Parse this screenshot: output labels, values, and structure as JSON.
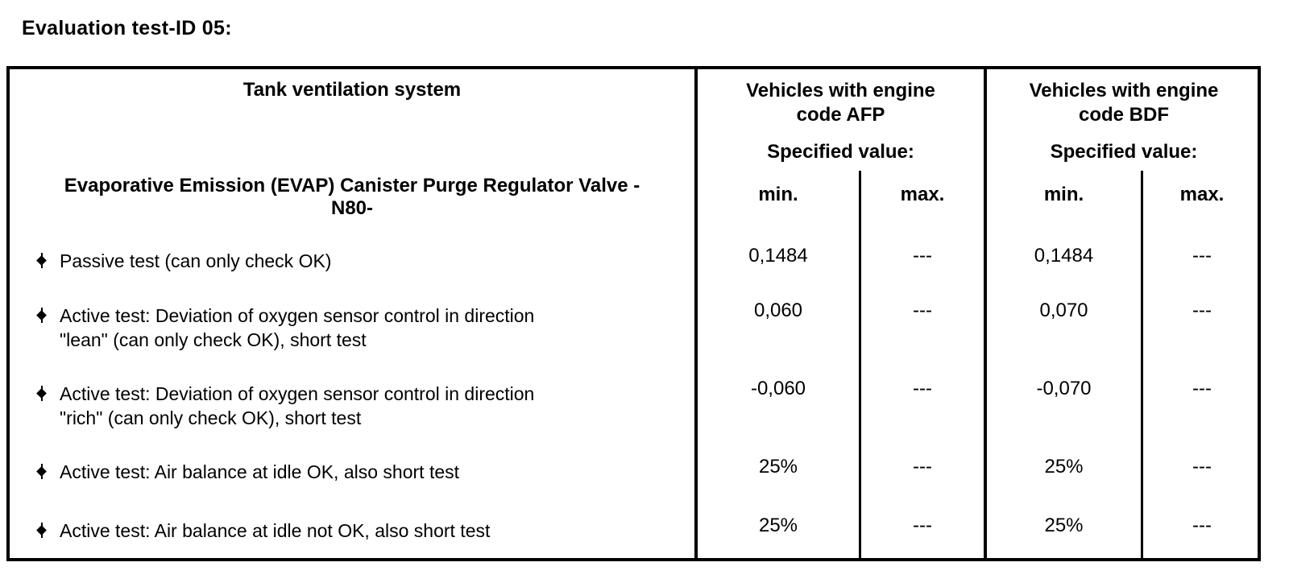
{
  "page_title": "Evaluation test-ID 05:",
  "table": {
    "left_header": "Tank ventilation system",
    "row_header": "Evaporative Emission (EVAP) Canister Purge Regulator Valve -\nN80-",
    "groups": [
      {
        "title": "Vehicles with engine\ncode AFP",
        "spec_label": "Specified value:",
        "min_label": "min.",
        "max_label": "max."
      },
      {
        "title": "Vehicles with engine\ncode BDF",
        "spec_label": "Specified value:",
        "min_label": "min.",
        "max_label": "max."
      }
    ],
    "rows": [
      {
        "label": "Passive test (can only check OK)",
        "values": [
          "0,1484",
          "---",
          "0,1484",
          "---"
        ]
      },
      {
        "label": "Active test: Deviation of oxygen sensor control in direction\n\"lean\" (can only check OK), short test",
        "values": [
          "0,060",
          "---",
          "0,070",
          "---"
        ]
      },
      {
        "label": "Active test: Deviation of oxygen sensor control in direction\n\"rich\" (can only check OK), short test",
        "values": [
          "-0,060",
          "---",
          "-0,070",
          "---"
        ]
      },
      {
        "label": "Active test: Air balance at idle OK, also short test",
        "values": [
          "25%",
          "---",
          "25%",
          "---"
        ]
      },
      {
        "label": "Active test: Air balance at idle not OK, also short test",
        "values": [
          "25%",
          "---",
          "25%",
          "---"
        ]
      }
    ],
    "colors": {
      "background": "#ffffff",
      "text": "#000000",
      "border": "#000000"
    }
  }
}
